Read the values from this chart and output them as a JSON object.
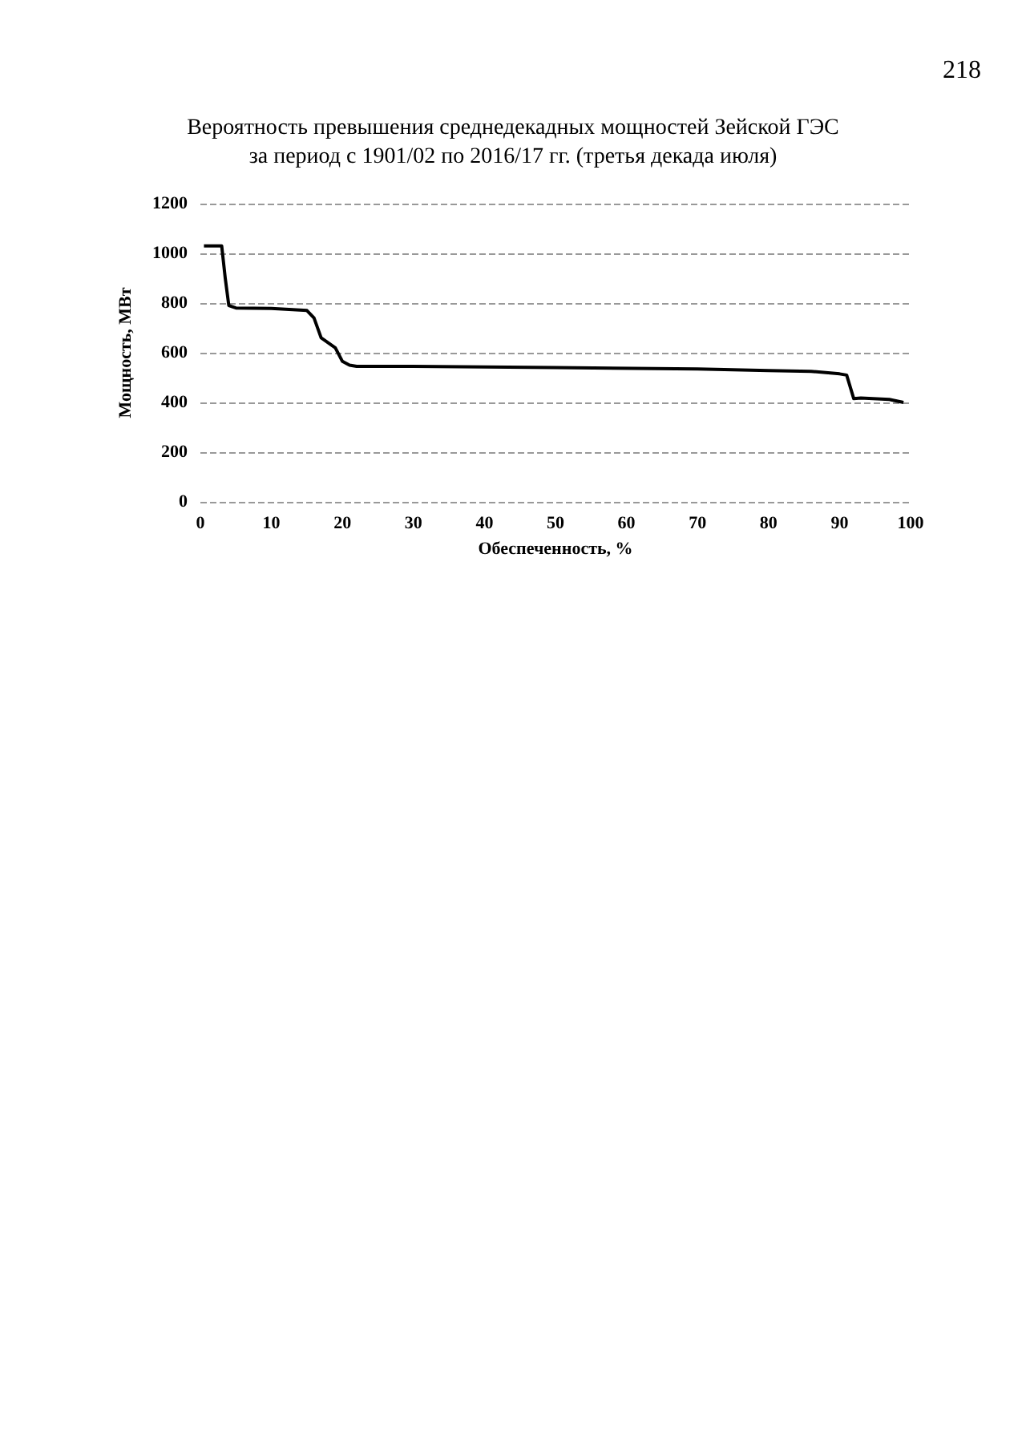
{
  "chart_data": {
    "type": "line",
    "title": "Вероятность превышения среднедекадных мощностей Зейской ГЭС\nза период с 1901/02 по 2016/17 гг. (третья декада июля)",
    "xlabel": "Обеспеченность, %",
    "ylabel": "Мощность, МВт",
    "annotations": [
      "218"
    ],
    "x": [
      0.5,
      3,
      3.5,
      4,
      5,
      10,
      13,
      15,
      16,
      17,
      18,
      19,
      20,
      21,
      22,
      30,
      50,
      70,
      80,
      86,
      90,
      91,
      92,
      93,
      97,
      99
    ],
    "series": [
      {
        "color": "#000000",
        "values": [
          1030,
          1030,
          900,
          790,
          780,
          778,
          773,
          770,
          740,
          660,
          640,
          620,
          565,
          550,
          545,
          545,
          540,
          535,
          528,
          525,
          515,
          510,
          415,
          418,
          412,
          400
        ]
      }
    ],
    "xlim": [
      0,
      100
    ],
    "xticks": [
      0,
      10,
      20,
      30,
      40,
      50,
      60,
      70,
      80,
      90,
      100
    ],
    "ylim": [
      0,
      1200
    ],
    "yticks": [
      0,
      200,
      400,
      600,
      800,
      1000,
      1200
    ],
    "grid": "y",
    "marker": "none",
    "line_style": "solid"
  }
}
